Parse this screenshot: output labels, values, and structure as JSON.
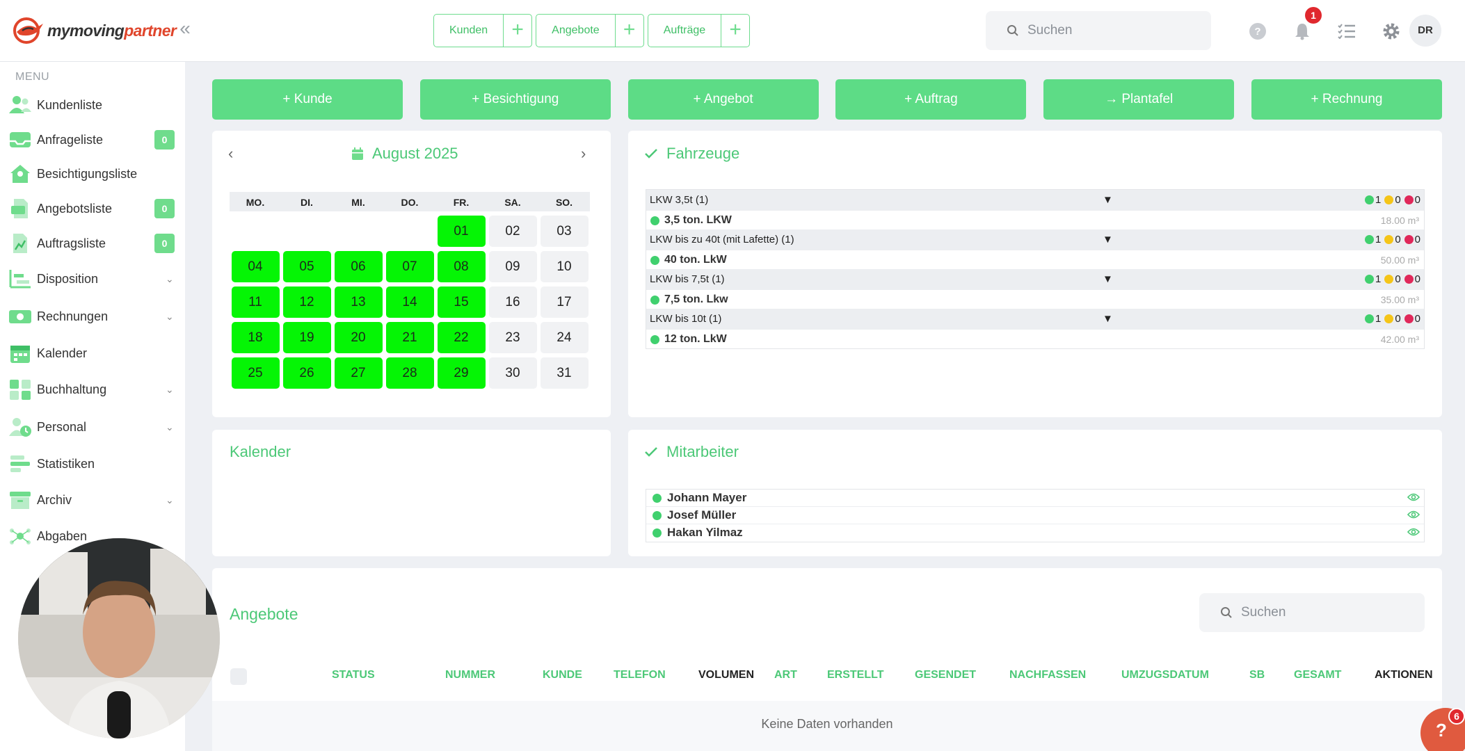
{
  "header": {
    "logo_text_a": "mymoving",
    "logo_text_b": "partner",
    "quick": [
      {
        "label": "Kunden",
        "plus": "+"
      },
      {
        "label": "Angebote",
        "plus": "+"
      },
      {
        "label": "Aufträge",
        "plus": "+"
      }
    ],
    "search_placeholder": "Suchen",
    "notifications_count": "1",
    "avatar_initials": "DR"
  },
  "sidebar": {
    "menu_title": "MENU",
    "items": [
      {
        "label": "Kundenliste",
        "icon": "users-icon"
      },
      {
        "label": "Anfrageliste",
        "icon": "inbox-icon",
        "badge": "0"
      },
      {
        "label": "Besichtigungsliste",
        "icon": "house-icon"
      },
      {
        "label": "Angebotsliste",
        "icon": "document-list-icon",
        "badge": "0"
      },
      {
        "label": "Auftragsliste",
        "icon": "document-chart-icon",
        "badge": "0"
      },
      {
        "label": "Disposition",
        "icon": "chart-icon",
        "chevron": "⌄"
      },
      {
        "label": "Rechnungen",
        "icon": "money-icon",
        "chevron": "⌄"
      },
      {
        "label": "Kalender",
        "icon": "calendar-icon"
      },
      {
        "label": "Buchhaltung",
        "icon": "calculator-icon",
        "chevron": "⌄"
      },
      {
        "label": "Personal",
        "icon": "person-clock-icon",
        "chevron": "⌄"
      },
      {
        "label": "Statistiken",
        "icon": "bars-icon"
      },
      {
        "label": "Archiv",
        "icon": "archive-icon",
        "chevron": "⌄"
      },
      {
        "label": "Abgaben",
        "icon": "network-icon"
      }
    ]
  },
  "actions": [
    {
      "label": "+ Kunde"
    },
    {
      "label": "+ Besichtigung"
    },
    {
      "label": "+ Angebot"
    },
    {
      "label": "+ Auftrag"
    },
    {
      "label": "→ Plantafel"
    },
    {
      "label": "+ Rechnung"
    }
  ],
  "calendar": {
    "title": "August 2025",
    "weekdays": [
      "MO.",
      "DI.",
      "MI.",
      "DO.",
      "FR.",
      "SA.",
      "SO."
    ],
    "weeks": [
      [
        null,
        null,
        null,
        null,
        {
          "d": "01",
          "g": true
        },
        {
          "d": "02",
          "g": false
        },
        {
          "d": "03",
          "g": false
        }
      ],
      [
        {
          "d": "04",
          "g": true
        },
        {
          "d": "05",
          "g": true
        },
        {
          "d": "06",
          "g": true
        },
        {
          "d": "07",
          "g": true
        },
        {
          "d": "08",
          "g": true
        },
        {
          "d": "09",
          "g": false
        },
        {
          "d": "10",
          "g": false
        }
      ],
      [
        {
          "d": "11",
          "g": true
        },
        {
          "d": "12",
          "g": true
        },
        {
          "d": "13",
          "g": true
        },
        {
          "d": "14",
          "g": true
        },
        {
          "d": "15",
          "g": true
        },
        {
          "d": "16",
          "g": false
        },
        {
          "d": "17",
          "g": false
        }
      ],
      [
        {
          "d": "18",
          "g": true
        },
        {
          "d": "19",
          "g": true
        },
        {
          "d": "20",
          "g": true
        },
        {
          "d": "21",
          "g": true
        },
        {
          "d": "22",
          "g": true
        },
        {
          "d": "23",
          "g": false
        },
        {
          "d": "24",
          "g": false
        }
      ],
      [
        {
          "d": "25",
          "g": true
        },
        {
          "d": "26",
          "g": true
        },
        {
          "d": "27",
          "g": true
        },
        {
          "d": "28",
          "g": true
        },
        {
          "d": "29",
          "g": true
        },
        {
          "d": "30",
          "g": false
        },
        {
          "d": "31",
          "g": false
        }
      ]
    ]
  },
  "fahrzeuge": {
    "title": "Fahrzeuge",
    "groups": [
      {
        "name": "LKW 3,5t (1)",
        "green": "1",
        "yellow": "0",
        "red": "0",
        "vehicle": "3,5 ton. LKW",
        "volume": "18.00 m³"
      },
      {
        "name": "LKW bis zu 40t (mit Lafette) (1)",
        "green": "1",
        "yellow": "0",
        "red": "0",
        "vehicle": "40 ton. LkW",
        "volume": "50.00 m³"
      },
      {
        "name": "LKW bis 7,5t (1)",
        "green": "1",
        "yellow": "0",
        "red": "0",
        "vehicle": "7,5 ton. Lkw",
        "volume": "35.00 m³"
      },
      {
        "name": "LKW bis 10t (1)",
        "green": "1",
        "yellow": "0",
        "red": "0",
        "vehicle": "12 ton. LkW",
        "volume": "42.00 m³"
      }
    ]
  },
  "kalender": {
    "title": "Kalender"
  },
  "mitarbeiter": {
    "title": "Mitarbeiter",
    "people": [
      "Johann Mayer",
      "Josef Müller",
      "Hakan Yilmaz"
    ]
  },
  "angebote": {
    "title": "Angebote",
    "search_placeholder": "Suchen",
    "columns": [
      "STATUS",
      "NUMMER",
      "KUNDE",
      "TELEFON",
      "VOLUMEN",
      "ART",
      "ERSTELLT",
      "GESENDET",
      "NACHFASSEN",
      "UMZUGSDATUM",
      "SB",
      "GESAMT",
      "AKTIONEN"
    ],
    "empty": "Keine Daten vorhanden"
  },
  "help": {
    "label": "?",
    "badge": "6"
  },
  "colors": {
    "accent": "#5ddc86",
    "calendar_green": "#05f505",
    "status_green": "#40d06e",
    "status_yellow": "#f5c518",
    "status_red": "#e0285a",
    "logo_red": "#e0452b"
  }
}
